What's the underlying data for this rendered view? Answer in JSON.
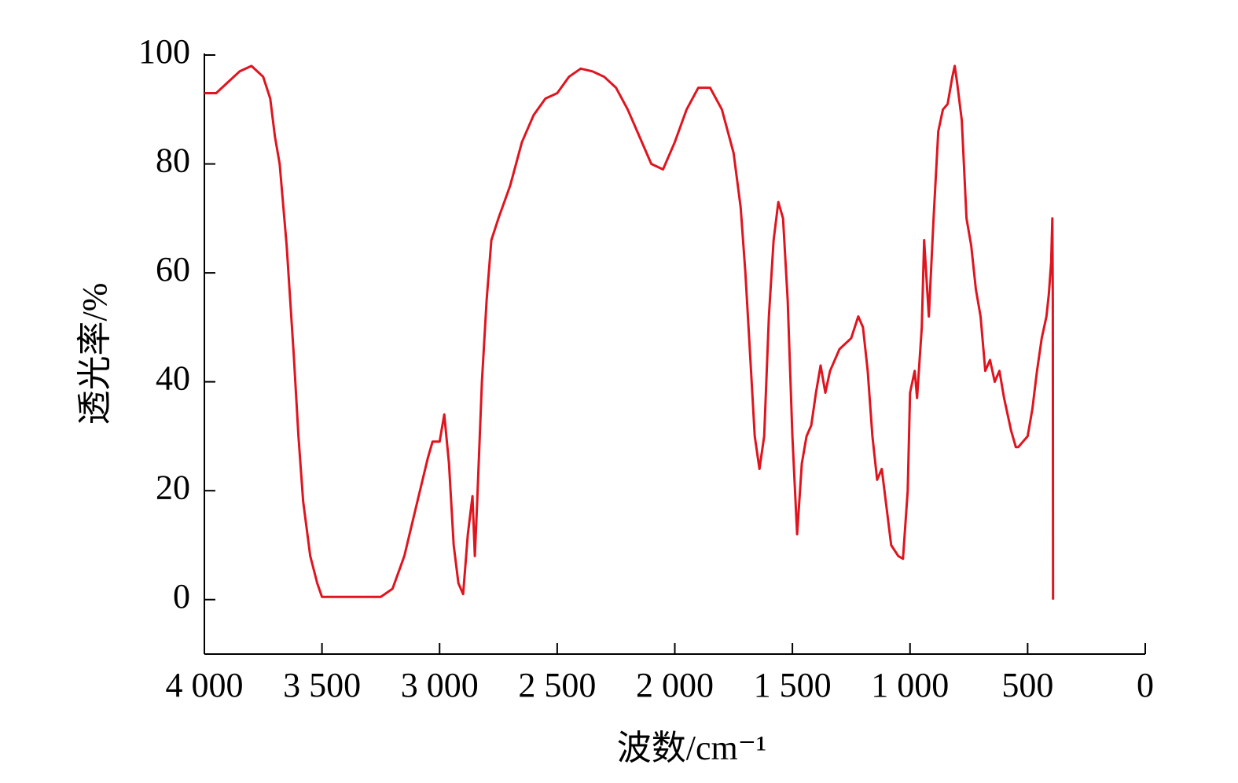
{
  "chart_data": {
    "type": "line",
    "x_label": "波数/cm⁻¹",
    "y_label": "透光率/%",
    "x": [
      4000,
      3950,
      3900,
      3850,
      3800,
      3750,
      3720,
      3700,
      3680,
      3650,
      3620,
      3600,
      3580,
      3550,
      3520,
      3500,
      3450,
      3400,
      3350,
      3300,
      3250,
      3200,
      3150,
      3100,
      3050,
      3030,
      3000,
      2980,
      2960,
      2940,
      2920,
      2900,
      2880,
      2860,
      2850,
      2840,
      2820,
      2800,
      2780,
      2750,
      2700,
      2650,
      2600,
      2550,
      2500,
      2450,
      2400,
      2350,
      2300,
      2250,
      2200,
      2150,
      2100,
      2050,
      2000,
      1950,
      1900,
      1850,
      1800,
      1750,
      1720,
      1700,
      1680,
      1660,
      1640,
      1620,
      1600,
      1580,
      1560,
      1540,
      1520,
      1500,
      1480,
      1460,
      1440,
      1420,
      1400,
      1380,
      1360,
      1340,
      1300,
      1250,
      1220,
      1200,
      1180,
      1160,
      1140,
      1120,
      1100,
      1080,
      1050,
      1030,
      1010,
      1000,
      980,
      970,
      950,
      940,
      920,
      900,
      880,
      860,
      840,
      820,
      810,
      800,
      780,
      760,
      740,
      720,
      700,
      680,
      660,
      640,
      620,
      600,
      570,
      550,
      540,
      520,
      500,
      480,
      460,
      440,
      420,
      410,
      400,
      395,
      393,
      392
    ],
    "series": [
      {
        "color": "#e0141e",
        "values": [
          93,
          93,
          95,
          97,
          98,
          96,
          92,
          85,
          80,
          65,
          45,
          30,
          18,
          8,
          3,
          0.5,
          0.5,
          0.5,
          0.5,
          0.5,
          0.5,
          2,
          8,
          17,
          26,
          29,
          29,
          34,
          25,
          10,
          3,
          1,
          12,
          19,
          8,
          18,
          40,
          55,
          66,
          70,
          76,
          84,
          89,
          92,
          93,
          96,
          97.5,
          97,
          96,
          94,
          90,
          85,
          80,
          79,
          84,
          90,
          94,
          94,
          90,
          82,
          72,
          60,
          45,
          30,
          24,
          30,
          52,
          66,
          73,
          70,
          55,
          30,
          12,
          25,
          30,
          32,
          38,
          43,
          38,
          42,
          46,
          48,
          52,
          50,
          42,
          30,
          22,
          24,
          17,
          10,
          8,
          7.5,
          20,
          38,
          42,
          37,
          50,
          66,
          52,
          70,
          86,
          90,
          91,
          96,
          98,
          95,
          88,
          70,
          65,
          57,
          52,
          42,
          44,
          40,
          42,
          37,
          31,
          28,
          28,
          29,
          30,
          35,
          42,
          48,
          52,
          56,
          62,
          70,
          55,
          0
        ]
      }
    ],
    "xlim": [
      4000,
      0
    ],
    "xticks": [
      {
        "value": 4000,
        "label": "4 000"
      },
      {
        "value": 3500,
        "label": "3 500"
      },
      {
        "value": 3000,
        "label": "3 000"
      },
      {
        "value": 2500,
        "label": "2 500"
      },
      {
        "value": 2000,
        "label": "2 000"
      },
      {
        "value": 1500,
        "label": "1 500"
      },
      {
        "value": 1000,
        "label": "1 000"
      },
      500,
      0
    ],
    "ylim": [
      -10,
      100
    ],
    "yticks": [
      0,
      20,
      40,
      60,
      80,
      100
    ]
  }
}
